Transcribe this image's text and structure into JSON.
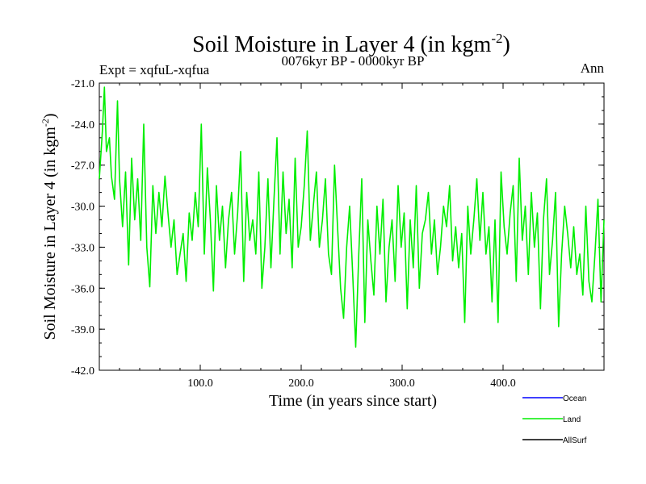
{
  "chart_data": {
    "type": "line",
    "title": "Soil Moisture in Layer 4 (in kgm",
    "title_superscript": "-2",
    "title_close": ")",
    "subtitle_left": "Expt = xqfuL-xqfua",
    "subtitle_center": "0076kyr BP - 0000kyr BP",
    "subtitle_right": "Ann",
    "xlabel": "Time (in years since start)",
    "ylabel": "Soil Moisture in Layer 4 (in kgm",
    "ylabel_superscript": "-2",
    "ylabel_close": ")",
    "xlim": [
      0,
      500
    ],
    "ylim": [
      -42.0,
      -21.0
    ],
    "x_ticks": [
      100,
      200,
      300,
      400
    ],
    "x_tick_labels": [
      "100.0",
      "200.0",
      "300.0",
      "400.0"
    ],
    "y_ticks": [
      -21,
      -24,
      -27,
      -30,
      -33,
      -36,
      -39,
      -42
    ],
    "y_tick_labels": [
      "-21.0",
      "-24.0",
      "-27.0",
      "-30.0",
      "-33.0",
      "-36.0",
      "-39.0",
      "-42.0"
    ],
    "legend": [
      {
        "name": "Ocean",
        "color": "#0000ff"
      },
      {
        "name": "Land",
        "color": "#00ee00"
      },
      {
        "name": "AllSurf",
        "color": "#000000"
      }
    ],
    "series": [
      {
        "name": "Land",
        "color": "#00ee00",
        "x": [
          0,
          3,
          5,
          7,
          10,
          12,
          15,
          18,
          20,
          23,
          26,
          29,
          32,
          35,
          38,
          41,
          44,
          47,
          50,
          53,
          56,
          59,
          62,
          65,
          68,
          71,
          74,
          77,
          80,
          83,
          86,
          89,
          92,
          95,
          98,
          101,
          104,
          107,
          110,
          113,
          116,
          119,
          122,
          125,
          128,
          131,
          134,
          137,
          140,
          143,
          146,
          149,
          152,
          155,
          158,
          161,
          164,
          167,
          170,
          173,
          176,
          179,
          182,
          185,
          188,
          191,
          194,
          197,
          200,
          203,
          206,
          209,
          212,
          215,
          218,
          221,
          224,
          227,
          230,
          233,
          236,
          239,
          242,
          245,
          248,
          251,
          254,
          257,
          260,
          263,
          266,
          269,
          272,
          275,
          278,
          281,
          284,
          287,
          290,
          293,
          296,
          299,
          302,
          305,
          308,
          311,
          314,
          317,
          320,
          323,
          326,
          329,
          332,
          335,
          338,
          341,
          344,
          347,
          350,
          353,
          356,
          359,
          362,
          365,
          368,
          371,
          374,
          377,
          380,
          383,
          386,
          389,
          392,
          395,
          398,
          401,
          404,
          407,
          410,
          413,
          416,
          419,
          422,
          425,
          428,
          431,
          434,
          437,
          440,
          443,
          446,
          449,
          452,
          455,
          458,
          461,
          464,
          467,
          470,
          473,
          476,
          479,
          482,
          485,
          488,
          491,
          494,
          497,
          500
        ],
        "values": [
          -28.0,
          -24.5,
          -21.3,
          -26.0,
          -25.0,
          -27.8,
          -29.5,
          -22.3,
          -28.0,
          -31.5,
          -27.5,
          -34.3,
          -26.5,
          -31.0,
          -28.0,
          -32.5,
          -24.0,
          -33.0,
          -35.9,
          -28.5,
          -32.0,
          -29.0,
          -31.5,
          -27.8,
          -30.5,
          -33.0,
          -31.0,
          -35.0,
          -33.5,
          -32.0,
          -35.5,
          -30.5,
          -32.5,
          -29.0,
          -31.5,
          -24.0,
          -33.5,
          -27.2,
          -31.0,
          -36.2,
          -28.5,
          -32.5,
          -30.0,
          -34.5,
          -31.0,
          -29.0,
          -33.5,
          -30.5,
          -26.0,
          -35.5,
          -29.0,
          -32.5,
          -31.0,
          -33.5,
          -27.5,
          -36.0,
          -33.0,
          -28.0,
          -34.5,
          -29.5,
          -25.0,
          -33.5,
          -27.5,
          -32.0,
          -29.5,
          -34.5,
          -26.5,
          -33.0,
          -31.5,
          -28.5,
          -24.5,
          -32.5,
          -30.0,
          -27.5,
          -33.0,
          -31.0,
          -28.0,
          -33.5,
          -35.0,
          -27.0,
          -31.5,
          -36.0,
          -38.2,
          -33.0,
          -30.0,
          -35.0,
          -40.3,
          -33.5,
          -28.0,
          -38.5,
          -31.0,
          -34.0,
          -36.5,
          -30.0,
          -33.5,
          -29.5,
          -37.0,
          -33.0,
          -31.0,
          -35.5,
          -28.5,
          -33.0,
          -30.5,
          -37.5,
          -31.0,
          -34.5,
          -28.5,
          -36.0,
          -32.0,
          -31.0,
          -29.0,
          -33.5,
          -31.0,
          -35.0,
          -33.0,
          -30.0,
          -31.5,
          -28.5,
          -34.0,
          -31.5,
          -34.5,
          -32.0,
          -38.5,
          -30.0,
          -33.5,
          -31.0,
          -28.0,
          -32.5,
          -29.0,
          -33.5,
          -31.5,
          -37.0,
          -31.0,
          -38.5,
          -27.5,
          -31.5,
          -33.5,
          -30.5,
          -28.5,
          -35.5,
          -26.5,
          -32.5,
          -30.0,
          -35.0,
          -29.0,
          -33.0,
          -30.5,
          -37.5,
          -31.0,
          -28.0,
          -35.0,
          -32.5,
          -29.0,
          -38.8,
          -33.5,
          -30.0,
          -32.0,
          -34.5,
          -31.5,
          -35.0,
          -33.5,
          -36.5,
          -30.0,
          -35.5,
          -37.0,
          -33.5,
          -29.5,
          -37.0,
          -31.0
        ]
      }
    ]
  }
}
